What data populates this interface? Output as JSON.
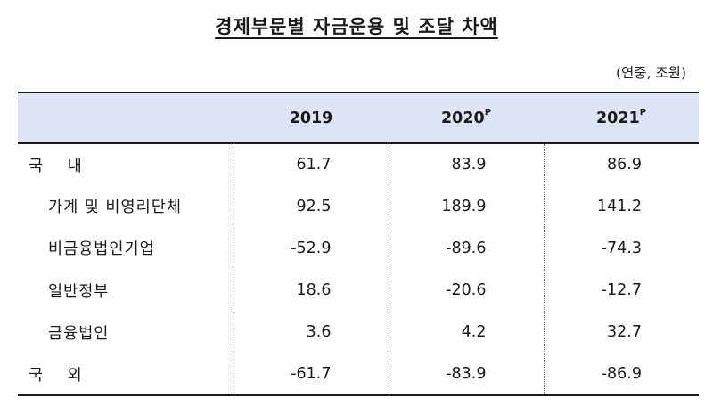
{
  "title": "경제부문별 자금운용 및 조달 차액",
  "unit": "(연중, 조원)",
  "table": {
    "header": {
      "col0": "",
      "years": [
        {
          "year": "2019",
          "mark": ""
        },
        {
          "year": "2020",
          "mark": "P"
        },
        {
          "year": "2021",
          "mark": "P"
        }
      ]
    },
    "rows": [
      {
        "label": "국 내",
        "level": "top",
        "values": [
          "61.7",
          "83.9",
          "86.9"
        ]
      },
      {
        "label": "가계 및 비영리단체",
        "level": "sub",
        "values": [
          "92.5",
          "189.9",
          "141.2"
        ]
      },
      {
        "label": "비금융법인기업",
        "level": "sub",
        "values": [
          "-52.9",
          "-89.6",
          "-74.3"
        ]
      },
      {
        "label": "일반정부",
        "level": "sub",
        "values": [
          "18.6",
          "-20.6",
          "-12.7"
        ]
      },
      {
        "label": "금융법인",
        "level": "sub",
        "values": [
          "3.6",
          "4.2",
          "32.7"
        ]
      },
      {
        "label": "국 외",
        "level": "top",
        "values": [
          "-61.7",
          "-83.9",
          "-86.9"
        ]
      }
    ]
  },
  "colors": {
    "header_bg": "#dce4f5",
    "border": "#1a1a1a",
    "separator": "#777777"
  }
}
